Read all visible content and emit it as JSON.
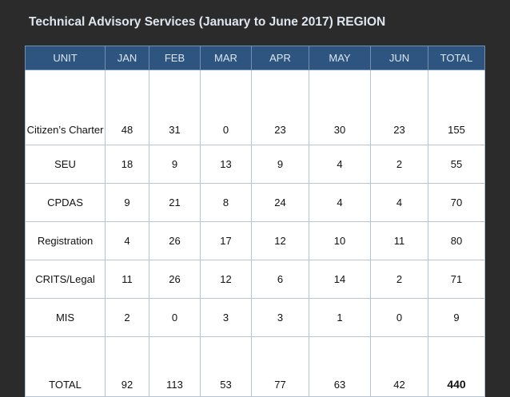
{
  "title": "Technical Advisory Services (January to June 2017)  REGION",
  "table": {
    "headers": [
      "UNIT",
      "JAN",
      "FEB",
      "MAR",
      "APR",
      "MAY",
      "JUN",
      "TOTAL"
    ],
    "rows": [
      {
        "unit": "Citizen’s Charter",
        "jan": "48",
        "feb": "31",
        "mar": "0",
        "apr": "23",
        "may": "30",
        "jun": "23",
        "total": "155"
      },
      {
        "unit": "SEU",
        "jan": "18",
        "feb": "9",
        "mar": "13",
        "apr": "9",
        "may": "4",
        "jun": "2",
        "total": "55"
      },
      {
        "unit": "CPDAS",
        "jan": "9",
        "feb": "21",
        "mar": "8",
        "apr": "24",
        "may": "4",
        "jun": "4",
        "total": "70"
      },
      {
        "unit": "Registration",
        "jan": "4",
        "feb": "26",
        "mar": "17",
        "apr": "12",
        "may": "10",
        "jun": "11",
        "total": "80"
      },
      {
        "unit": "CRITS/Legal",
        "jan": "11",
        "feb": "26",
        "mar": "12",
        "apr": "6",
        "may": "14",
        "jun": "2",
        "total": "71"
      },
      {
        "unit": "MIS",
        "jan": "2",
        "feb": "0",
        "mar": "3",
        "apr": "3",
        "may": "1",
        "jun": "0",
        "total": "9"
      },
      {
        "unit": "TOTAL",
        "jan": "92",
        "feb": "113",
        "mar": "53",
        "apr": "77",
        "may": "63",
        "jun": "42",
        "total": "440"
      }
    ]
  },
  "colors": {
    "background": "#2b2b2b",
    "header": "#2e5580",
    "title": "#dfe6ef"
  }
}
